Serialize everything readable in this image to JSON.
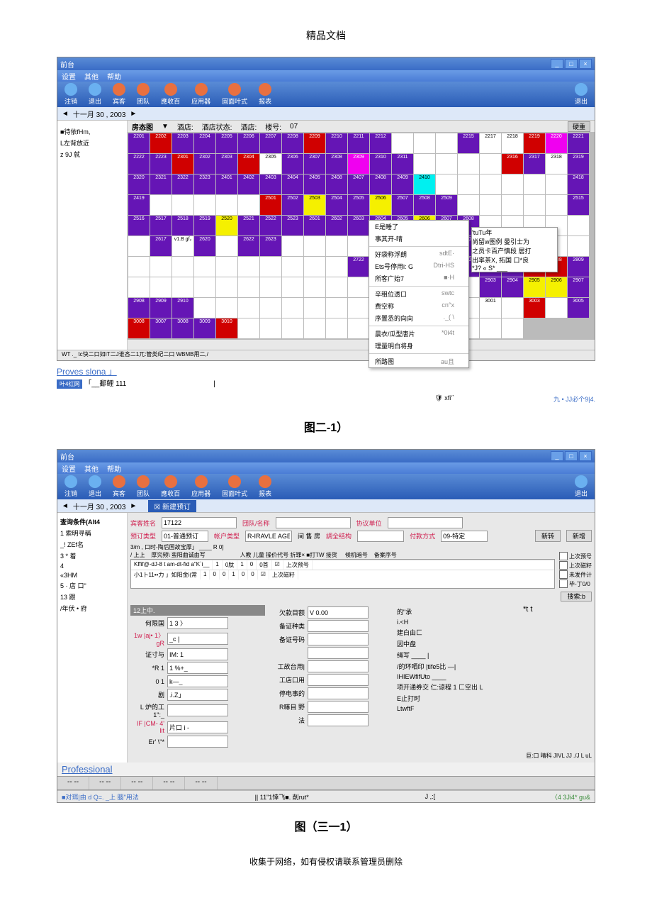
{
  "doc": {
    "header": "精品文档",
    "footer": "收集于网络，如有侵权请联系管理员删除"
  },
  "caption1": "图二-1）",
  "caption2": "图（三一1）",
  "win1": {
    "title": "前台",
    "menus": [
      "设置",
      "其他",
      "帮助"
    ],
    "toolbar": [
      {
        "ico": "blue",
        "label": "注销"
      },
      {
        "ico": "blue",
        "label": "退出"
      },
      {
        "ico": "orange",
        "label": "宾客"
      },
      {
        "ico": "orange",
        "label": "团队"
      },
      {
        "ico": "orange",
        "label": "應收百"
      },
      {
        "ico": "orange",
        "label": "应用器"
      },
      {
        "ico": "orange",
        "label": "固面叶式"
      },
      {
        "ico": "orange",
        "label": "报表"
      }
    ],
    "toolbar_right": "退出",
    "date": "十一月 30 , 2003",
    "roompanel_title": "房态图",
    "rp_head": [
      "",
      "酒店:",
      "酒店状态:",
      "酒店:",
      "楼号:",
      "07"
    ],
    "rp_head_btn": "硬重",
    "sidebar": [
      "■待依fHm,",
      "L左背放近",
      "z 9J 就"
    ],
    "grid_rows": [
      [
        "2201",
        "2202",
        "2203",
        "2204",
        "2205",
        "2206",
        "2207",
        "2208",
        "2209",
        "2210",
        "2211",
        "2212",
        "",
        "",
        "",
        "2215",
        "2217",
        "2218",
        "2219",
        "2220",
        "2221",
        "2222",
        "2223"
      ],
      [
        "2301",
        "2302",
        "2303",
        "2304",
        "2305",
        "2306",
        "2307",
        "2308",
        "2309",
        "2310",
        "2311",
        "",
        "",
        "",
        "",
        "2316",
        "2317",
        "2318",
        "2319",
        "2320",
        "2321",
        "2322",
        "2323"
      ],
      [
        "2401",
        "2402",
        "2403",
        "2404",
        "2405",
        "2408",
        "2407",
        "2408",
        "2409",
        "2410",
        "",
        "",
        "",
        "",
        "",
        "",
        "2418",
        "2419",
        "",
        "",
        "",
        "",
        ""
      ],
      [
        "2501",
        "2502",
        "2503",
        "2504",
        "2505",
        "2506",
        "2507",
        "2508",
        "2509",
        "",
        "",
        "",
        "",
        "",
        "2515",
        "2516",
        "2517",
        "2518",
        "2519",
        "2520",
        "2521",
        "2522",
        "2523"
      ],
      [
        "2601",
        "2602",
        "2603",
        "2604",
        "2605",
        "2606",
        "2607",
        "2608",
        "",
        "",
        "",
        "",
        "",
        "",
        "2617",
        "v1.B gf₂",
        "2620",
        "",
        "2622",
        "2623",
        "",
        "",
        ""
      ],
      [
        "",
        "2702",
        "",
        "",
        "2705",
        "2706",
        "2707",
        "2708",
        "",
        "",
        "",
        "",
        "",
        "",
        "",
        "",
        "",
        "",
        "",
        "",
        "",
        "2722",
        "2723"
      ],
      [
        "2801",
        "2802",
        "2803",
        "2804",
        "2805",
        "2806",
        "2807",
        "2808",
        "2809",
        "",
        "",
        "",
        "",
        "",
        "",
        "",
        "",
        "",
        "",
        "",
        "",
        "",
        ""
      ],
      [
        "2901",
        "",
        "2903",
        "2904",
        "2905",
        "2906",
        "2907",
        "2908",
        "2909",
        "2910",
        "",
        "",
        "",
        "",
        "",
        "",
        "",
        "",
        "",
        "",
        "",
        "",
        ""
      ],
      [
        "3001",
        "",
        "3003",
        "",
        "3005",
        "3008",
        "3007",
        "3008",
        "3009",
        "3010",
        "",
        "",
        "",
        "",
        "",
        "",
        "",
        "",
        "",
        "",
        "",
        "",
        ""
      ]
    ],
    "grid_colors": [
      [
        "p",
        "r",
        "p",
        "p",
        "p",
        "p",
        "p",
        "p",
        "r",
        "p",
        "p",
        "p",
        "w",
        "w",
        "w",
        "p",
        "w",
        "w",
        "r",
        "m",
        "p",
        "p",
        "p"
      ],
      [
        "r",
        "p",
        "p",
        "r",
        "w",
        "p",
        "p",
        "p",
        "m",
        "p",
        "p",
        "w",
        "w",
        "w",
        "w",
        "r",
        "p",
        "w",
        "p",
        "p",
        "p",
        "p",
        "p"
      ],
      [
        "p",
        "p",
        "p",
        "p",
        "p",
        "p",
        "p",
        "p",
        "p",
        "c",
        "w",
        "w",
        "w",
        "w",
        "w",
        "w",
        "p",
        "p",
        "w",
        "w",
        "w",
        "w",
        "w"
      ],
      [
        "r",
        "p",
        "y",
        "p",
        "p",
        "y",
        "p",
        "p",
        "p",
        "w",
        "w",
        "w",
        "w",
        "w",
        "p",
        "p",
        "p",
        "p",
        "p",
        "y",
        "p",
        "p",
        "p"
      ],
      [
        "p",
        "p",
        "p",
        "p",
        "p",
        "y",
        "p",
        "p",
        "w",
        "w",
        "w",
        "w",
        "w",
        "w",
        "p",
        "w",
        "p",
        "w",
        "p",
        "p",
        "w",
        "w",
        "w"
      ],
      [
        "w",
        "p",
        "w",
        "w",
        "p",
        "p",
        "p",
        "p",
        "w",
        "w",
        "w",
        "w",
        "w",
        "w",
        "w",
        "w",
        "w",
        "w",
        "w",
        "w",
        "w",
        "p",
        "p"
      ],
      [
        "y",
        "p",
        "p",
        "p",
        "p",
        "p",
        "r",
        "r",
        "p",
        "w",
        "w",
        "w",
        "w",
        "w",
        "w",
        "w",
        "w",
        "w",
        "w",
        "w",
        "w",
        "w",
        "w"
      ],
      [
        "p",
        "w",
        "p",
        "p",
        "y",
        "y",
        "p",
        "p",
        "p",
        "p",
        "w",
        "w",
        "w",
        "w",
        "w",
        "w",
        "w",
        "w",
        "w",
        "w",
        "w",
        "w",
        "w"
      ],
      [
        "w",
        "w",
        "r",
        "w",
        "p",
        "r",
        "p",
        "p",
        "p",
        "r",
        "w",
        "w",
        "w",
        "w",
        "w",
        "w",
        "w",
        "w",
        "w",
        "w",
        "w",
        "w",
        "w"
      ]
    ],
    "menu": {
      "title_row": "BR•'",
      "items": [
        {
          "l": "E是睡了",
          "r": ""
        },
        {
          "l": "事其开-晴",
          "r": ""
        },
        {
          "l": "",
          "r": "",
          "sep": true
        },
        {
          "l": "好袋称浮朗",
          "r": "sdtE·"
        },
        {
          "l": "Ets号停用i: G",
          "r": "Dtri-HS"
        },
        {
          "l": "所客广始7",
          "r": "■·H"
        },
        {
          "l": "",
          "r": "",
          "sep": true
        },
        {
          "l": "辛租位透口",
          "r": "swtc"
        },
        {
          "l": "费空称",
          "r": "cn°x"
        },
        {
          "l": "序置丞的向向",
          "r": "._( \\"
        },
        {
          "l": "",
          "r": "",
          "sep": true
        },
        {
          "l": "晨衣/瓜型唐片",
          "r": "*0i4t"
        },
        {
          "l": "理量明白将身",
          "r": ""
        },
        {
          "l": "",
          "r": "",
          "sep": true
        },
        {
          "l": "所路图",
          "r": "au且"
        }
      ]
    },
    "submenu": {
      "items": [
        "'tuTu年",
        "尚留w图例 曼引士为",
        "之员卡百产慎段 居打",
        "出率茶X, 拓国 口*良",
        "*J? « S* ___"
      ]
    },
    "status_text": "WT ._ tс快二口如IT二J谁吝二1兀:管类纪二口 WBMB用二,/",
    "below": {
      "line1": "Proves slona 」",
      "line2": "「__鄱鲤 111",
      "line2_end": "|",
      "bluebox": "叶4红网"
    },
    "footer_icons": {
      "left": "xfi'`",
      "right": "九 • JJ必个9|4."
    }
  },
  "win2": {
    "title": "前台",
    "menus": [
      "设置",
      "其他",
      "帮助"
    ],
    "date": "十一月 30 , 2003",
    "panel_title": "新建预订",
    "toolbar": [
      {
        "ico": "blue",
        "label": "注销"
      },
      {
        "ico": "blue",
        "label": "退出"
      },
      {
        "ico": "orange",
        "label": "宾客"
      },
      {
        "ico": "orange",
        "label": "团队"
      },
      {
        "ico": "orange",
        "label": "應收百"
      },
      {
        "ico": "orange",
        "label": "应用器"
      },
      {
        "ico": "orange",
        "label": "固面叶式"
      },
      {
        "ico": "orange",
        "label": "报表"
      }
    ],
    "toolbar_right": "退出",
    "sidebar_title": "查询条件(Alt4",
    "sidebar": [
      "1 索明寻稱",
      "_! ZEf名",
      "3 * 着",
      "4",
      "«3HM",
      "5 · 店 口\"",
      "13 跟",
      "/年伏 • 府"
    ],
    "form_top": {
      "guest_name_label": "宾客姓名",
      "guest_name": "17122",
      "team_label": "団队/名称",
      "team": "",
      "unit_label": "协议单位",
      "unit": "",
      "order_type_label": "预订类型",
      "order_type": "01-普通预订",
      "cust_type_label": "帐户类型",
      "cust_type": "R-IRAVLE AGEN",
      "guest_price": "间 售 房",
      "price_struct_label": "調全结构",
      "price_struct": "",
      "pay_type_label": "付款方式",
      "pay_type": "09-特定",
      "btns": [
        "新转",
        "新增"
      ]
    },
    "form_line2": "3/m , 口时-陶后国故宝厚」 ____  R 0]",
    "table_head": "/ 上上    厚究频\\ 蛮阳曲诚由写                      人教 儿童 操价代号 折罪× ■打TW 接货     候机暗号    备案序号",
    "table_rows": [
      [
        "Kffif@-dJ-8   t am-dt-fid a\"K`i__",
        "1",
        "0肽",
        "1",
        "0",
        "0首",
        "☑",
        "上次预号"
      ],
      [
        "小1卜11••力    」如阳金i(常",
        "1",
        "0",
        "0",
        "1",
        "0",
        "0",
        "☑",
        "上次磁籽"
      ]
    ],
    "checkboxes": [
      "上次预号",
      "上次磁籽",
      "未发件计",
      "毕-丁0/0"
    ],
    "search_btn": "搜索:b",
    "left_col": {
      "hdr": "12上中.",
      "rows": [
        {
          "lab": "何限国",
          "val": "1 3 〉"
        },
        {
          "lab": "1w |aj• 1〉gR",
          "val": "_c |"
        },
        {
          "lab": "证寸与",
          "val": "IM: 1"
        },
        {
          "lab": "*R 1",
          "val": "1 %+_"
        },
        {
          "lab": "0 1",
          "val": "k—_"
        },
        {
          "lab": "剧",
          "val": ".i.Z」"
        },
        {
          "lab": "L 炉的工1\":_",
          "val": ""
        },
        {
          "lab": "IF |CM- 4' lit",
          "val": "片口 i -"
        },
        {
          "lab": "Er' \\\"*",
          "val": ""
        }
      ]
    },
    "mid_col": {
      "rows": [
        {
          "lab": "欠款目额",
          "val": "V 0.00"
        },
        {
          "lab": "备证种类",
          "val": ""
        },
        {
          "lab": "备证号码",
          "val": ""
        },
        {
          "lab": "",
          "val": ""
        },
        {
          "lab": "工故台用|",
          "val": ""
        },
        {
          "lab": "工店口用",
          "val": ""
        },
        {
          "lab": "停电事的",
          "val": ""
        },
        {
          "lab": "R嘛目 野",
          "val": ""
        },
        {
          "lab": "法",
          "val": ""
        }
      ]
    },
    "right_col": {
      "rows": [
        "的\"承",
        "i.<H",
        "建白由匚",
        "因中盘",
        "",
        "绳写  ____ |",
        "/的环哂印 |tife5比 —|",
        "IHIEWfifUto ____",
        "项开通券交 仁:谅程 1 匚空出 L",
        "E止打时",
        "LtwftF"
      ]
    },
    "side_t": "*t t",
    "bottom_line": "巨:口      晴科 JIVL JJ ./J L uL",
    "prof": "Professional",
    "tabs": [
      "-- --",
      "-- --",
      "-- --",
      "-- --",
      "-- --"
    ],
    "status_left": "■对珥|由 d Q=. _上 腦\"用法",
    "status_mid": "|| 11\"1悻飞■. 削rut*",
    "status_mid2": "J ,:[",
    "status_right": "〈4 3Ji4* gu&"
  }
}
